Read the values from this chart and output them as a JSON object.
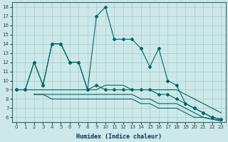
{
  "xlabel": "Humidex (Indice chaleur)",
  "bg_color": "#cce8e8",
  "line_color": "#006666",
  "grid_color": "#aacccc",
  "xlim": [
    -0.5,
    23.5
  ],
  "ylim": [
    5.5,
    18.5
  ],
  "xticks": [
    0,
    1,
    2,
    3,
    4,
    5,
    6,
    7,
    8,
    9,
    10,
    11,
    12,
    13,
    14,
    15,
    16,
    17,
    18,
    19,
    20,
    21,
    22,
    23
  ],
  "yticks": [
    6,
    7,
    8,
    9,
    10,
    11,
    12,
    13,
    14,
    15,
    16,
    17,
    18
  ],
  "line_main": {
    "x": [
      0,
      1,
      2,
      3,
      4,
      5,
      6,
      7,
      8,
      9,
      10,
      11,
      12,
      13,
      14,
      15,
      16,
      17,
      18,
      19,
      20,
      21,
      22,
      23
    ],
    "y": [
      9,
      9,
      12,
      9.5,
      14,
      14,
      12,
      12,
      9,
      17,
      18,
      14.5,
      14.5,
      14.5,
      13.5,
      11.5,
      13.5,
      10,
      9.5,
      7.5,
      7,
      6.5,
      6,
      5.8
    ],
    "marker": "D",
    "markersize": 2.0,
    "lw": 0.8
  },
  "line_low1": {
    "x": [
      0,
      1,
      2,
      3,
      4,
      5,
      6,
      7,
      8,
      9,
      10,
      11,
      12,
      13,
      14,
      15,
      16,
      17,
      18,
      19,
      20,
      21,
      22,
      23
    ],
    "y": [
      9,
      9,
      9,
      9,
      9,
      9,
      9,
      9,
      9,
      9,
      9.5,
      9.5,
      9.5,
      9,
      9,
      9,
      9,
      9,
      9,
      8.5,
      8,
      7.5,
      7,
      6.5
    ],
    "lw": 0.8
  },
  "line_low2": {
    "x": [
      2,
      3,
      4,
      5,
      6,
      7,
      8,
      9,
      10,
      11,
      12,
      13,
      14,
      15,
      16,
      17,
      18,
      19,
      20,
      21,
      22,
      23
    ],
    "y": [
      8.5,
      8.5,
      8.5,
      8.5,
      8.5,
      8.5,
      8.5,
      8.5,
      8.5,
      8.5,
      8.5,
      8.5,
      8,
      8,
      7.5,
      7.5,
      7.5,
      7,
      6.5,
      6,
      5.8,
      5.7
    ],
    "lw": 0.8
  },
  "line_low3": {
    "x": [
      2,
      3,
      4,
      5,
      6,
      7,
      8,
      9,
      10,
      11,
      12,
      13,
      14,
      15,
      16,
      17,
      18,
      19,
      20,
      21,
      22,
      23
    ],
    "y": [
      8.5,
      8.5,
      8,
      8,
      8,
      8,
      8,
      8,
      8,
      8,
      8,
      8,
      7.5,
      7.5,
      7,
      7,
      7,
      6.5,
      6,
      6,
      5.8,
      5.6
    ],
    "lw": 0.8
  },
  "line_zigzag": {
    "x": [
      0,
      1,
      2,
      3,
      4,
      5,
      6,
      7,
      8,
      9,
      10,
      11,
      12,
      13,
      14,
      15,
      16,
      17,
      18,
      19,
      20,
      21,
      22,
      23
    ],
    "y": [
      9,
      9,
      12,
      9.5,
      14,
      14,
      12,
      12,
      9,
      9.5,
      9,
      9,
      9,
      9,
      9,
      9,
      8.5,
      8.5,
      8,
      7.5,
      7,
      6.5,
      6,
      5.8
    ],
    "marker": "D",
    "markersize": 2.0,
    "lw": 0.8
  }
}
